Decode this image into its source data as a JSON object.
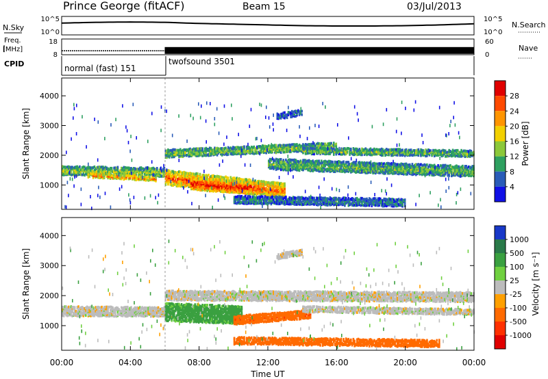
{
  "header": {
    "station": "Prince George (fitACF)",
    "beam": "Beam 15",
    "date": "03/Jul/2013"
  },
  "noise_panel": {
    "left_label": "N.Sky",
    "left_ticks": [
      "10^5",
      "10^0"
    ],
    "right_ticks": [
      "10^5",
      "10^0"
    ],
    "right_label": "N.Search"
  },
  "freq_panel": {
    "left_label_top": "Freq.",
    "left_label_unit": "[MHz]",
    "left_ticks": [
      "18",
      "8"
    ],
    "right_ticks": [
      "60",
      "0"
    ],
    "right_label": "Nave"
  },
  "cpid_panel": {
    "label": "CPID",
    "segments": [
      {
        "name": "normal (fast) 151",
        "start_h": 0,
        "end_h": 6
      },
      {
        "name": "twofsound 3501",
        "start_h": 6,
        "end_h": 24
      }
    ]
  },
  "x_axis": {
    "ticks": [
      "00:00",
      "04:00",
      "08:00",
      "12:00",
      "16:00",
      "20:00",
      "00:00"
    ],
    "label": "Time UT"
  },
  "power_colorbar": {
    "label": "Power [dB]",
    "ticks": [
      "28",
      "24",
      "20",
      "16",
      "12",
      "8",
      "4"
    ],
    "colors": [
      "#e00000",
      "#ff4a00",
      "#ff9500",
      "#f2d000",
      "#8cc83a",
      "#2ea060",
      "#2a5cb8",
      "#1010e6"
    ]
  },
  "velocity_colorbar": {
    "label": "Velocity [m s⁻¹]",
    "ticks": [
      "1000",
      "500",
      "100",
      "25",
      "-25",
      "-100",
      "-500",
      "-1000"
    ],
    "colors": [
      "#1838c8",
      "#2a7a4a",
      "#3aa040",
      "#70d040",
      "#bcbcbc",
      "#ffa000",
      "#ff6a00",
      "#ff3000",
      "#e00000"
    ]
  },
  "chart_data": [
    {
      "type": "line",
      "title": "N.Sky / N.Search",
      "x_hours": [
        0,
        2,
        4,
        6,
        8,
        10,
        12,
        14,
        16,
        18,
        20,
        22,
        24
      ],
      "series": [
        {
          "values": [
            3.2,
            3.4,
            3.5,
            3.4,
            3.1,
            2.9,
            2.7,
            2.5,
            2.4,
            2.4,
            2.5,
            2.7,
            3.0
          ]
        }
      ],
      "ylim": [
        0,
        5
      ]
    },
    {
      "type": "line",
      "title": "Freq. / Nave",
      "x_hours": [
        0,
        6,
        6,
        24
      ],
      "series": [
        {
          "name": "Freq.",
          "values": [
            10.5,
            10.5,
            10.7,
            10.7
          ]
        }
      ],
      "ylim": [
        8,
        18
      ]
    },
    {
      "type": "heatmap",
      "title": "Power",
      "xlabel": "Time UT",
      "ylabel": "Slant Range [km]",
      "xlim": [
        0,
        24
      ],
      "ylim": [
        180,
        4600
      ],
      "yticks": [
        1000,
        2000,
        3000,
        4000
      ],
      "zlabel": "Power [dB]",
      "zlim": [
        0,
        30
      ],
      "bands": [
        {
          "t": [
            0.0,
            6.0
          ],
          "r_center": [
            1480,
            1420
          ],
          "width": 300,
          "z": 14
        },
        {
          "t": [
            1.5,
            5.5
          ],
          "r_center": [
            1320,
            1200
          ],
          "width": 140,
          "z": 22
        },
        {
          "t": [
            6.0,
            13.0
          ],
          "r_center": [
            1250,
            800
          ],
          "width": 500,
          "z": 24
        },
        {
          "t": [
            7.5,
            11.0
          ],
          "r_center": [
            1050,
            900
          ],
          "width": 420,
          "z": 28
        },
        {
          "t": [
            6.0,
            16.0
          ],
          "r_center": [
            2050,
            2300
          ],
          "width": 260,
          "z": 13
        },
        {
          "t": [
            12.0,
            24.0
          ],
          "r_center": [
            1700,
            1450
          ],
          "width": 360,
          "z": 12
        },
        {
          "t": [
            14.0,
            24.0
          ],
          "r_center": [
            2150,
            2050
          ],
          "width": 220,
          "z": 12
        },
        {
          "t": [
            10.0,
            20.0
          ],
          "r_center": [
            500,
            400
          ],
          "width": 260,
          "z": 8
        },
        {
          "t": [
            12.5,
            14.0
          ],
          "r_center": [
            3300,
            3450
          ],
          "width": 200,
          "z": 7
        }
      ]
    },
    {
      "type": "heatmap",
      "title": "Velocity",
      "xlabel": "Time UT",
      "ylabel": "Slant Range [km]",
      "xlim": [
        0,
        24
      ],
      "ylim": [
        180,
        4600
      ],
      "yticks": [
        1000,
        2000,
        3000,
        4000
      ],
      "zlabel": "Velocity [m s⁻¹]",
      "zlim": [
        -1000,
        1000
      ],
      "bands": [
        {
          "t": [
            0.0,
            6.5
          ],
          "r_center": [
            1480,
            1450
          ],
          "width": 320,
          "z": 0
        },
        {
          "t": [
            6.0,
            10.5
          ],
          "r_center": [
            1450,
            1350
          ],
          "width": 600,
          "z": 120
        },
        {
          "t": [
            10.0,
            14.5
          ],
          "r_center": [
            1180,
            1380
          ],
          "width": 280,
          "z": -300
        },
        {
          "t": [
            6.0,
            24.0
          ],
          "r_center": [
            2000,
            1950
          ],
          "width": 320,
          "z": 0
        },
        {
          "t": [
            14.0,
            24.0
          ],
          "r_center": [
            1550,
            1450
          ],
          "width": 200,
          "z": 0
        },
        {
          "t": [
            12.5,
            14.0
          ],
          "r_center": [
            3300,
            3450
          ],
          "width": 200,
          "z": 0
        },
        {
          "t": [
            10.0,
            22.0
          ],
          "r_center": [
            500,
            400
          ],
          "width": 240,
          "z": -150
        }
      ]
    }
  ]
}
